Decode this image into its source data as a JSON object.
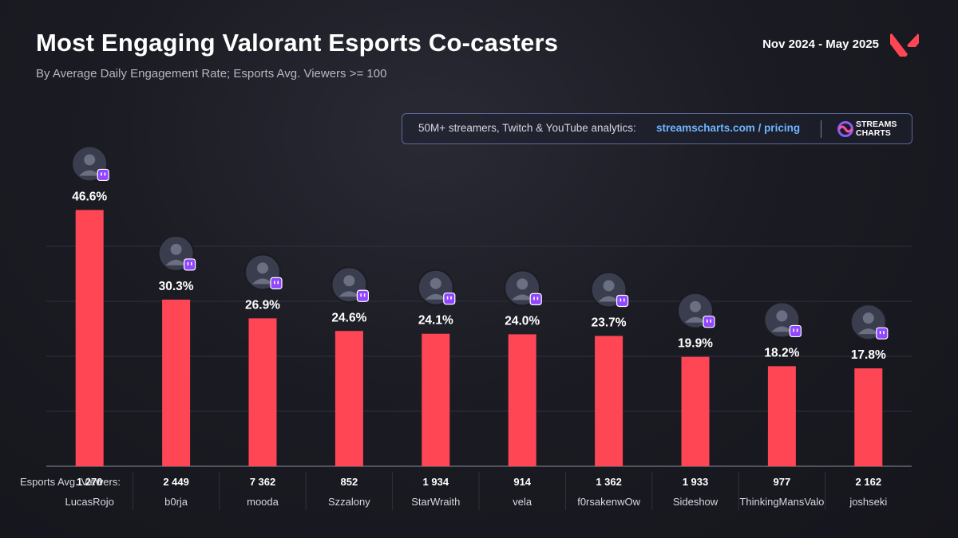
{
  "header": {
    "title": "Most Engaging Valorant Esports Co-casters",
    "subtitle": "By Average Daily Engagement Rate; Esports Avg. Viewers >= 100",
    "period": "Nov 2024 - May 2025",
    "logo_icon": "valorant-logo-icon"
  },
  "promo": {
    "text": "50M+ streamers, Twitch & YouTube analytics:",
    "link": "streamscharts.com / pricing",
    "brand_line1": "STREAMS",
    "brand_line2": "CHARTS",
    "brand_icon": "streams-charts-logo-icon"
  },
  "colors": {
    "bar": "#ff4655",
    "twitch_badge": "#9146ff",
    "link": "#6fb6ff",
    "accent": "#ff4655"
  },
  "chart_data": {
    "type": "bar",
    "title": "Most Engaging Valorant Esports Co-casters",
    "subtitle": "By Average Daily Engagement Rate; Esports Avg. Viewers >= 100",
    "categories": [
      "LucasRojo",
      "b0rja",
      "mooda",
      "Szzalony",
      "StarWraith",
      "vela",
      "f0rsakenwOw",
      "Sideshow",
      "ThinkingMansValo",
      "joshseki"
    ],
    "values": [
      46.6,
      30.3,
      26.9,
      24.6,
      24.1,
      24.0,
      23.7,
      19.9,
      18.2,
      17.8
    ],
    "value_labels": [
      "46.6%",
      "30.3%",
      "26.9%",
      "24.6%",
      "24.1%",
      "24.0%",
      "23.7%",
      "19.9%",
      "18.2%",
      "17.8%"
    ],
    "secondary_label": "Esports Avg. Viewers:",
    "secondary_values": [
      "1 270",
      "2 449",
      "7 362",
      "852",
      "1 934",
      "914",
      "1 362",
      "1 933",
      "977",
      "2 162"
    ],
    "platform_icon": "twitch-icon",
    "ylim": [
      0,
      50
    ],
    "grid": true,
    "legend": "none"
  }
}
